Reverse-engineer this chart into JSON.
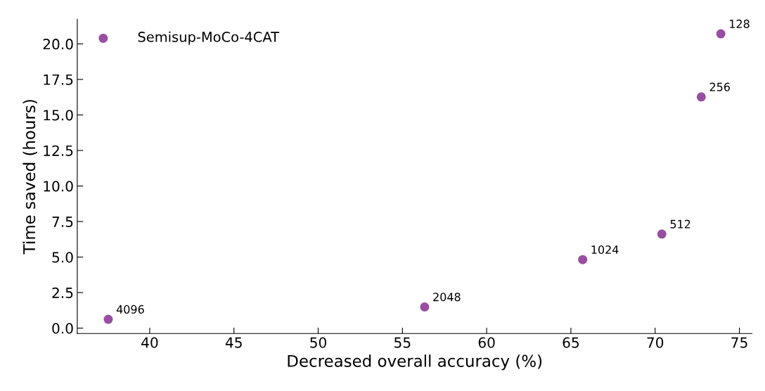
{
  "chart_data": {
    "type": "scatter",
    "xlabel": "Decreased overall accuracy (%)",
    "ylabel": "Time saved (hours)",
    "x": [
      73.9,
      72.74,
      70.4,
      65.7,
      56.32,
      37.54
    ],
    "series": [
      {
        "name": "Semisup-MoCo-4CAT",
        "color": "#984ea3",
        "values": [
          20.71,
          16.27,
          6.62,
          4.82,
          1.49,
          0.62
        ]
      }
    ],
    "annotations": [
      {
        "text": "128",
        "x": 73.9,
        "y": 20.71
      },
      {
        "text": "256",
        "x": 72.74,
        "y": 16.27
      },
      {
        "text": "512",
        "x": 70.4,
        "y": 6.62
      },
      {
        "text": "1024",
        "x": 65.7,
        "y": 4.82
      },
      {
        "text": "2048",
        "x": 56.32,
        "y": 1.49
      },
      {
        "text": "4096",
        "x": 37.54,
        "y": 0.62
      }
    ],
    "xlim": [
      35.7,
      75.75
    ],
    "ylim": [
      -0.38,
      21.74
    ],
    "xticks": [
      40,
      45,
      50,
      55,
      60,
      65,
      70,
      75
    ],
    "yticks": [
      {
        "value": 0,
        "label": "0.0"
      },
      {
        "value": 2.5,
        "label": "2.5"
      },
      {
        "value": 5,
        "label": "5.0"
      },
      {
        "value": 7.5,
        "label": "7.5"
      },
      {
        "value": 10,
        "label": "10.0"
      },
      {
        "value": 12.5,
        "label": "12.5"
      },
      {
        "value": 15,
        "label": "15.0"
      },
      {
        "value": 17.5,
        "label": "17.5"
      },
      {
        "value": 20,
        "label": "20.0"
      }
    ],
    "legend": "top left",
    "grid": false,
    "marker": "circle"
  }
}
